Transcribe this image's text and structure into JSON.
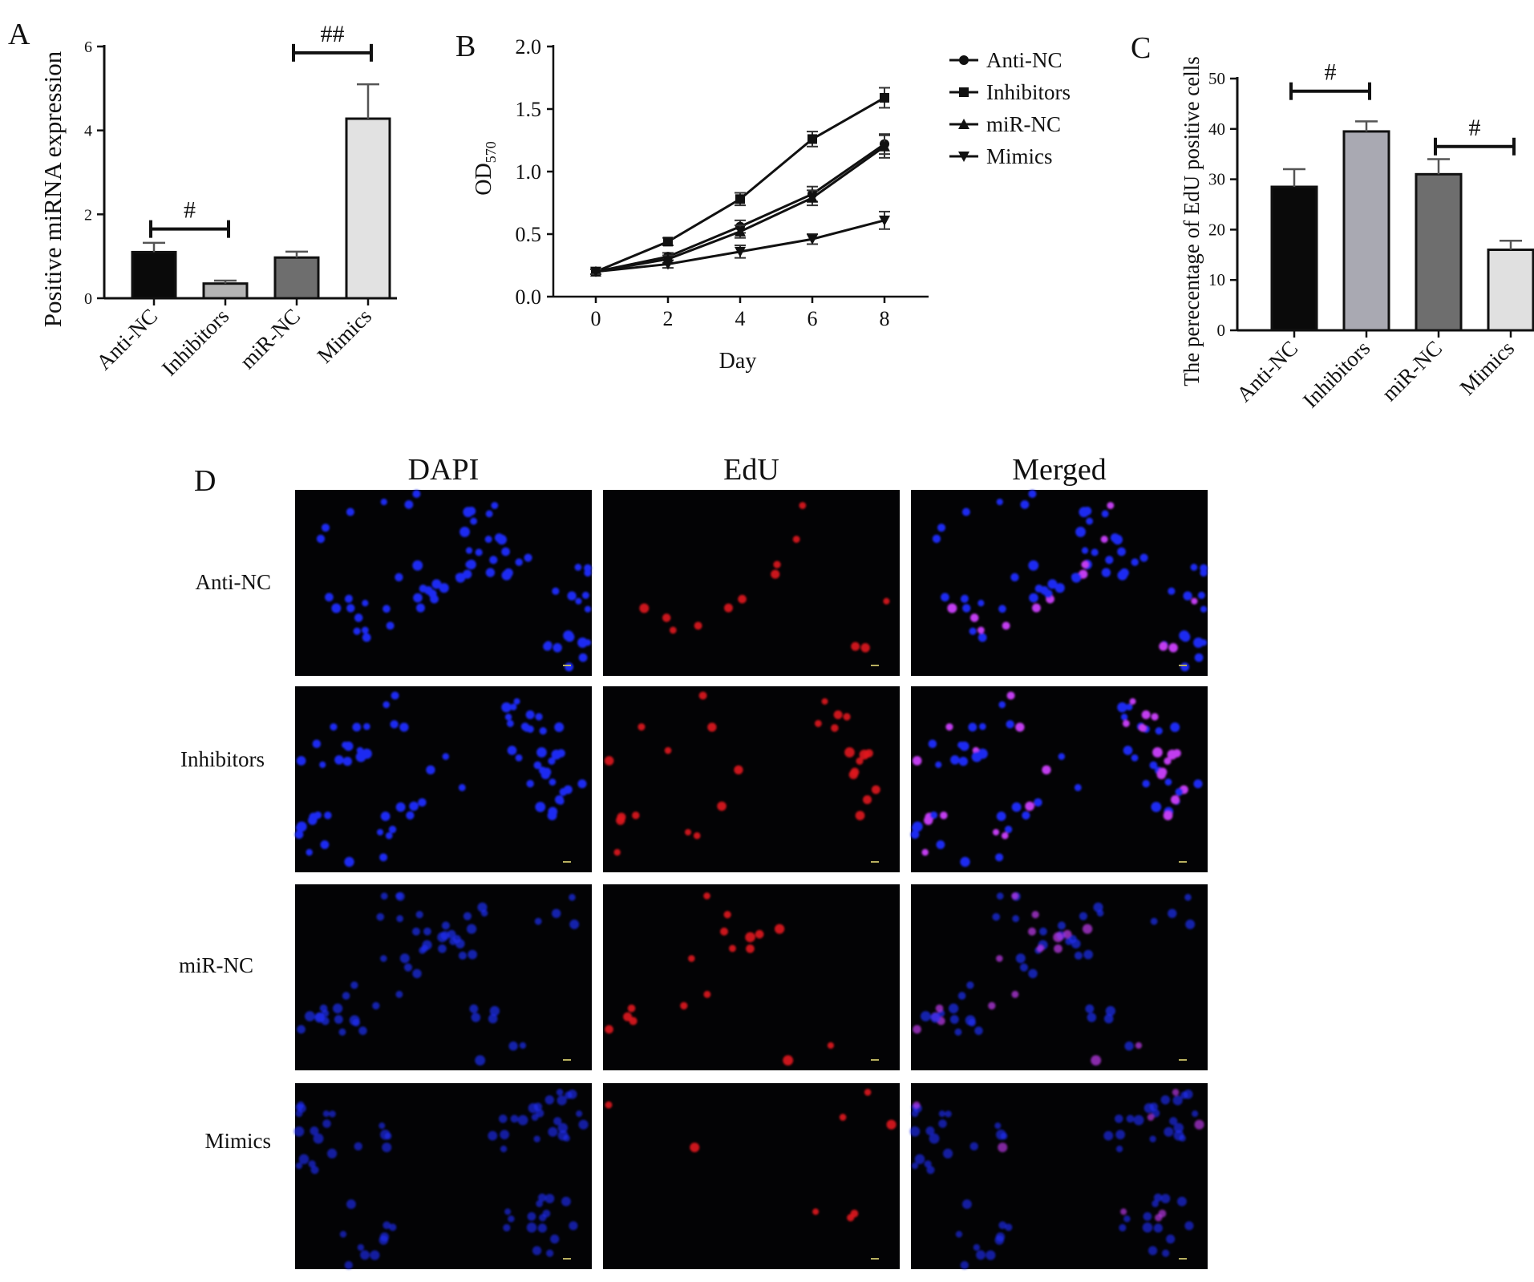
{
  "panel_labels": {
    "a": "A",
    "b": "B",
    "c": "C",
    "d": "D"
  },
  "chart_data": [
    {
      "id": "A",
      "type": "bar",
      "ylabel": "Positive miRNA expression",
      "xlabel": "",
      "ylim": [
        0,
        6
      ],
      "yticks": [
        "0",
        "2",
        "4",
        "6"
      ],
      "categories": [
        "Anti-NC",
        "Inhibitors",
        "miR-NC",
        "Mimics"
      ],
      "values": [
        1.1,
        0.35,
        0.97,
        4.28
      ],
      "errors": [
        0.22,
        0.07,
        0.14,
        0.82
      ],
      "colors": [
        "#0a0a0a",
        "#b4b4b4",
        "#6e6e6e",
        "#e2e2e2"
      ],
      "annotations": [
        {
          "from": 0,
          "to": 1,
          "level": 1.65,
          "label": "#"
        },
        {
          "from": 2,
          "to": 3,
          "level": 5.85,
          "label": "##"
        }
      ],
      "grid": false
    },
    {
      "id": "B",
      "type": "line",
      "ylabel": "OD",
      "ylabel_sub": "570",
      "xlabel": "Day",
      "x": [
        0,
        2,
        4,
        6,
        8
      ],
      "xticks": [
        "0",
        "2",
        "4",
        "6",
        "8"
      ],
      "ylim": [
        0,
        2.0
      ],
      "yticks": [
        "0.0",
        "0.5",
        "1.0",
        "1.5",
        "2.0"
      ],
      "series": [
        {
          "name": "Anti-NC",
          "marker": "circle",
          "values": [
            0.2,
            0.32,
            0.56,
            0.82,
            1.22
          ],
          "errors": [
            0.02,
            0.03,
            0.05,
            0.06,
            0.08
          ]
        },
        {
          "name": "Inhibitors",
          "marker": "square",
          "values": [
            0.2,
            0.44,
            0.78,
            1.26,
            1.59
          ],
          "errors": [
            0.02,
            0.03,
            0.05,
            0.06,
            0.08
          ]
        },
        {
          "name": "miR-NC",
          "marker": "triangle-up",
          "values": [
            0.2,
            0.3,
            0.52,
            0.79,
            1.2
          ],
          "errors": [
            0.02,
            0.03,
            0.05,
            0.06,
            0.09
          ]
        },
        {
          "name": "Mimics",
          "marker": "triangle-down",
          "values": [
            0.2,
            0.26,
            0.36,
            0.46,
            0.61
          ],
          "errors": [
            0.02,
            0.03,
            0.05,
            0.04,
            0.07
          ]
        }
      ],
      "legend": "right",
      "grid": false
    },
    {
      "id": "C",
      "type": "bar",
      "ylabel": "The perecentage of EdU positive cells",
      "xlabel": "",
      "ylim": [
        0,
        50
      ],
      "yticks": [
        "0",
        "10",
        "20",
        "30",
        "40",
        "50"
      ],
      "categories": [
        "Anti-NC",
        "Inhibitors",
        "miR-NC",
        "Mimics"
      ],
      "values": [
        28.5,
        39.5,
        31,
        16
      ],
      "errors": [
        3.5,
        2,
        3,
        1.8
      ],
      "colors": [
        "#0a0a0a",
        "#a9a9b2",
        "#6e6e6e",
        "#e0e0e0"
      ],
      "annotations": [
        {
          "from": 0,
          "to": 1,
          "level": 47.5,
          "label": "#"
        },
        {
          "from": 2,
          "to": 3,
          "level": 36.5,
          "label": "#"
        }
      ],
      "grid": false
    }
  ],
  "micrographs": {
    "columns": [
      "DAPI",
      "EdU",
      "Merged"
    ],
    "rows": [
      "Anti-NC",
      "Inhibitors",
      "miR-NC",
      "Mimics"
    ]
  }
}
